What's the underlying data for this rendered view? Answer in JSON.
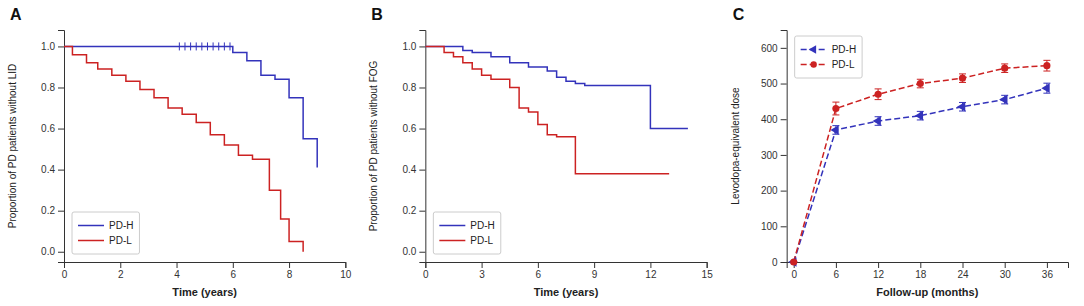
{
  "chart_data": [
    {
      "type": "step",
      "title": "A",
      "xlabel": "Time (years)",
      "ylabel": "Proportion of PD patients without LID",
      "xlim": [
        0,
        10
      ],
      "ylim": [
        -0.05,
        1.08
      ],
      "xticks": [
        0,
        2,
        4,
        6,
        8,
        10
      ],
      "yticks": [
        {
          "value": 0.0,
          "label": "0.0"
        },
        0.2,
        0.4,
        0.6,
        0.8,
        {
          "value": 1.0,
          "label": "1.0"
        }
      ],
      "grid": false,
      "legend": "lower left",
      "series": [
        {
          "name": "PD-H",
          "color": "#3333bb",
          "x": [
            0,
            1.0,
            2.0,
            3.0,
            4.0,
            4.2,
            4.4,
            4.6,
            4.8,
            5.0,
            5.2,
            5.4,
            5.6,
            5.8,
            6.0,
            6.5,
            7.0,
            7.5,
            8.0,
            8.5,
            9.0
          ],
          "values": [
            1.0,
            1.0,
            1.0,
            1.0,
            1.0,
            1.0,
            1.0,
            1.0,
            1.0,
            1.0,
            1.0,
            1.0,
            1.0,
            1.0,
            0.97,
            0.93,
            0.86,
            0.84,
            0.75,
            0.55,
            0.41
          ],
          "censor_x": [
            4.1,
            4.3,
            4.5,
            4.7,
            4.9,
            5.1,
            5.3,
            5.5,
            5.7,
            5.9
          ],
          "censor_y": [
            1.0,
            1.0,
            1.0,
            1.0,
            1.0,
            1.0,
            1.0,
            1.0,
            1.0,
            1.0
          ]
        },
        {
          "name": "PD-L",
          "color": "#cc2222",
          "x": [
            0,
            0.3,
            0.8,
            1.2,
            1.7,
            2.2,
            2.7,
            3.2,
            3.7,
            4.2,
            4.7,
            5.2,
            5.7,
            6.2,
            6.7,
            7.0,
            7.3,
            7.7,
            8.0,
            8.5
          ],
          "values": [
            1.0,
            0.96,
            0.92,
            0.89,
            0.86,
            0.83,
            0.79,
            0.75,
            0.7,
            0.67,
            0.63,
            0.57,
            0.52,
            0.47,
            0.45,
            0.45,
            0.3,
            0.16,
            0.05,
            0.0
          ]
        }
      ]
    },
    {
      "type": "step",
      "title": "B",
      "xlabel": "Time (years)",
      "ylabel": "Proportion of PD patients without FOG",
      "xlim": [
        0,
        15
      ],
      "ylim": [
        -0.05,
        1.08
      ],
      "xticks": [
        0,
        3,
        6,
        9,
        12,
        15
      ],
      "yticks": [
        {
          "value": 0.0,
          "label": "0.0"
        },
        0.2,
        0.4,
        0.6,
        0.8,
        {
          "value": 1.0,
          "label": "1.0"
        }
      ],
      "grid": false,
      "legend": "lower left",
      "series": [
        {
          "name": "PD-H",
          "color": "#3333bb",
          "x": [
            0,
            1.0,
            2.0,
            2.5,
            3.5,
            4.5,
            5.5,
            6.5,
            7.0,
            7.5,
            8.0,
            8.5,
            9.0,
            10.0,
            11.0,
            12.0,
            13.0,
            14.0
          ],
          "values": [
            1.0,
            1.0,
            0.98,
            0.97,
            0.95,
            0.92,
            0.9,
            0.88,
            0.85,
            0.83,
            0.82,
            0.81,
            0.81,
            0.81,
            0.81,
            0.6,
            0.6,
            0.6
          ]
        },
        {
          "name": "PD-L",
          "color": "#cc2222",
          "x": [
            0,
            1.0,
            1.5,
            2.0,
            2.5,
            3.0,
            3.5,
            4.5,
            5.0,
            5.5,
            6.0,
            6.5,
            7.0,
            7.5,
            8.0,
            9.0,
            10.0,
            11.0,
            12.0,
            13.0
          ],
          "values": [
            1.0,
            0.97,
            0.95,
            0.92,
            0.89,
            0.86,
            0.84,
            0.8,
            0.7,
            0.68,
            0.62,
            0.57,
            0.56,
            0.56,
            0.38,
            0.38,
            0.38,
            0.38,
            0.38,
            0.38
          ]
        }
      ]
    },
    {
      "type": "line",
      "title": "C",
      "xlabel": "Follow-up (months)",
      "ylabel": "Levodopa-equivalent dose",
      "xlim": [
        -1,
        39
      ],
      "ylim": [
        0,
        650
      ],
      "xticks": [
        0,
        6,
        12,
        18,
        24,
        30,
        36
      ],
      "yticks": [
        0,
        100,
        200,
        300,
        400,
        500,
        600
      ],
      "grid": false,
      "legend": "upper left",
      "series": [
        {
          "name": "PD-H",
          "color": "#3333bb",
          "marker": "triangle-left",
          "line_style": "dashed",
          "x": [
            0,
            6,
            12,
            18,
            24,
            30,
            36
          ],
          "values": [
            0,
            370,
            395,
            410,
            435,
            455,
            487
          ],
          "errors": [
            0,
            12,
            12,
            12,
            12,
            12,
            14
          ]
        },
        {
          "name": "PD-L",
          "color": "#cc2222",
          "marker": "circle",
          "line_style": "dashed",
          "x": [
            0,
            6,
            12,
            18,
            24,
            30,
            36
          ],
          "values": [
            0,
            430,
            470,
            500,
            515,
            543,
            550
          ],
          "errors": [
            0,
            18,
            15,
            12,
            12,
            12,
            15
          ]
        }
      ]
    }
  ]
}
